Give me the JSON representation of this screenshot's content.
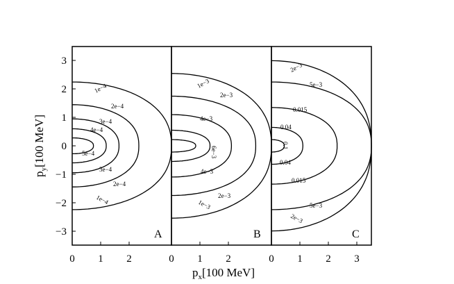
{
  "chart_data": {
    "type": "contour",
    "xlabel_main": "p",
    "xlabel_sub": "x",
    "xlabel_unit": "[100 MeV]",
    "ylabel_main": "p",
    "ylabel_sub": "y",
    "ylabel_unit": "[100 MeV]",
    "ylim": [
      -3.5,
      3.5
    ],
    "y_ticks": [
      "3",
      "2",
      "1",
      "0",
      "−1",
      "−2",
      "−3"
    ],
    "panels": [
      {
        "label": "A",
        "xlim": [
          0,
          3.5
        ],
        "x_ticks": [
          "0",
          "1",
          "2"
        ],
        "levels": [
          {
            "value": "1e−4",
            "x_max": 3.5,
            "y_half": 2.25
          },
          {
            "value": "2e−4",
            "x_max": 2.35,
            "y_half": 1.45
          },
          {
            "value": "3e−4",
            "x_max": 1.65,
            "y_half": 0.95
          },
          {
            "value": "4e−4",
            "x_max": 1.2,
            "y_half": 0.6
          },
          {
            "value": "5e−4",
            "x_max": 0.75,
            "y_half": 0.28
          }
        ],
        "contour_labels": [
          "1e−4",
          "2e−4",
          "3e−4",
          "4e−4",
          "5e−4",
          "3e−4",
          "2e−4",
          "1e−4"
        ]
      },
      {
        "label": "B",
        "xlim": [
          0,
          3.5
        ],
        "x_ticks": [
          "0",
          "1",
          "2"
        ],
        "levels": [
          {
            "value": "1e−3",
            "x_max": 3.5,
            "y_half": 2.55
          },
          {
            "value": "2e−3",
            "x_max": 2.95,
            "y_half": 1.75
          },
          {
            "value": "4e−3",
            "x_max": 2.1,
            "y_half": 1.1
          },
          {
            "value": "6e−3",
            "x_max": 1.35,
            "y_half": 0.55
          },
          {
            "value": "",
            "x_max": 0.85,
            "y_half": 0.22
          }
        ],
        "contour_labels": [
          "1e−3",
          "2e−3",
          "4e−3",
          "6e−3",
          "4e−3",
          "2e−3",
          "1e−3"
        ]
      },
      {
        "label": "C",
        "xlim": [
          0,
          3.5
        ],
        "x_ticks": [
          "0",
          "1",
          "2",
          "3"
        ],
        "levels": [
          {
            "value": "2e−3",
            "x_max": 3.5,
            "y_half": 3.0
          },
          {
            "value": "5e−3",
            "x_max": 3.5,
            "y_half": 2.25
          },
          {
            "value": "0.015",
            "x_max": 2.3,
            "y_half": 1.35
          },
          {
            "value": "0.04",
            "x_max": 1.1,
            "y_half": 0.65
          },
          {
            "value": "0.1",
            "x_max": 0.45,
            "y_half": 0.22
          }
        ],
        "contour_labels": [
          "2e−3",
          "5e−3",
          "0.015",
          "0.04",
          "0.1",
          "0.04",
          "0.015",
          "5e−3",
          "2e−3"
        ]
      }
    ]
  }
}
